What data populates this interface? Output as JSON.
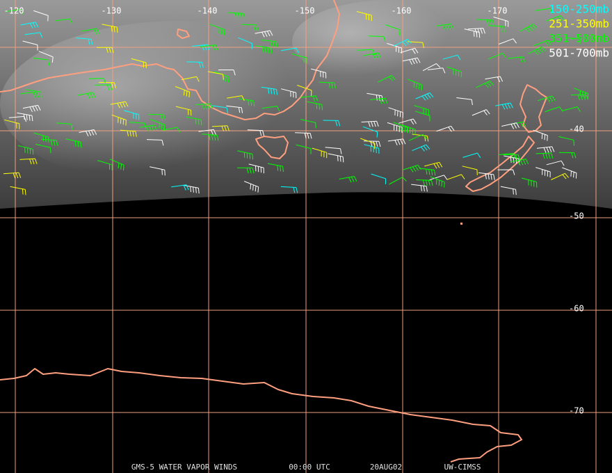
{
  "map": {
    "longitude_labels": [
      "-120",
      "-130",
      "-140",
      "-150",
      "-160",
      "-170"
    ],
    "latitude_labels": [
      "-40",
      "-50",
      "-60",
      "-70"
    ],
    "legend": [
      {
        "label": "150-250mb",
        "color": "#00ffff"
      },
      {
        "label": "251-350mb",
        "color": "#ffff00"
      },
      {
        "label": "351-500mb",
        "color": "#00ff00"
      },
      {
        "label": "501-700mb",
        "color": "#ffffff"
      }
    ],
    "footer": [
      "GMS-5 WATER VAPOR WINDS",
      "00:00 UTC",
      "20AUG02",
      "UW-CIMSS"
    ]
  }
}
